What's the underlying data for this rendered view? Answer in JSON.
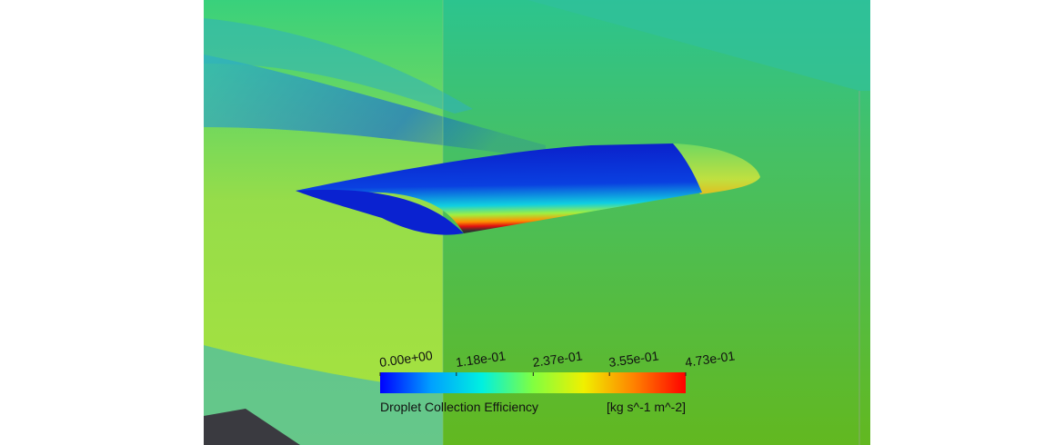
{
  "colorbar": {
    "title": "Droplet Collection Efficiency",
    "units": "[kg s^-1 m^-2]",
    "range": [
      0,
      0.473
    ],
    "colors": [
      "#0000ff",
      "#00a0ff",
      "#00f0e0",
      "#80ff40",
      "#f0f000",
      "#ff8000",
      "#ff0000"
    ],
    "ticks": [
      {
        "value": 0,
        "label": "0.00e+00"
      },
      {
        "value": 0.118,
        "label": "1.18e-01"
      },
      {
        "value": 0.237,
        "label": "2.37e-01"
      },
      {
        "value": 0.355,
        "label": "3.55e-01"
      },
      {
        "value": 0.473,
        "label": "4.73e-01"
      }
    ]
  }
}
